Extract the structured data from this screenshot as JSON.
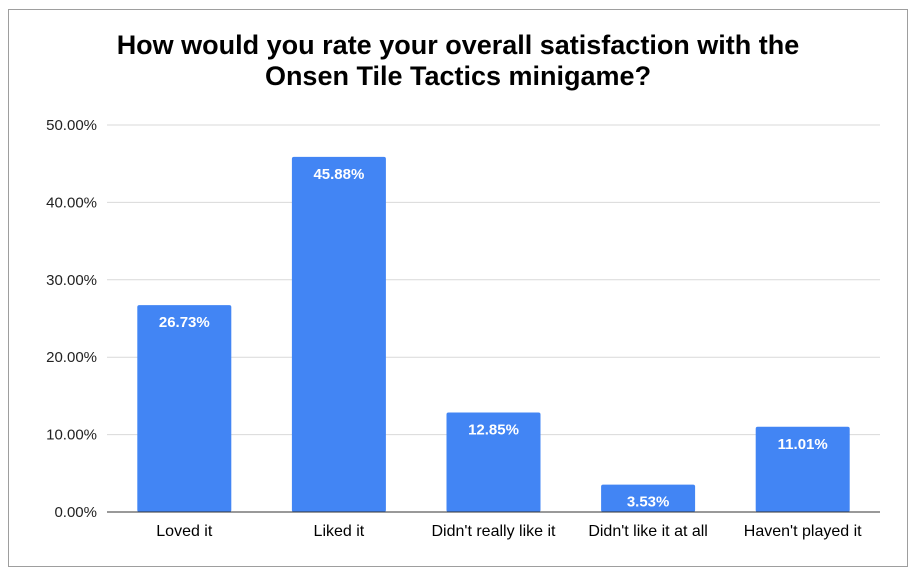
{
  "chart_data": {
    "type": "bar",
    "title_lines": [
      "How would you rate your overall satisfaction with the",
      "Onsen Tile Tactics minigame?"
    ],
    "categories": [
      "Loved it",
      "Liked it",
      "Didn't really like it",
      "Didn't like it at all",
      "Haven't played it"
    ],
    "values": [
      26.73,
      45.88,
      12.85,
      3.53,
      11.01
    ],
    "data_labels": [
      "26.73%",
      "45.88%",
      "12.85%",
      "3.53%",
      "11.01%"
    ],
    "ylim": [
      0,
      50
    ],
    "yticks": [
      0,
      10,
      20,
      30,
      40,
      50
    ],
    "ytick_labels": [
      "0.00%",
      "10.00%",
      "20.00%",
      "30.00%",
      "40.00%",
      "50.00%"
    ],
    "grid": true,
    "bar_color": "#4285f4"
  }
}
